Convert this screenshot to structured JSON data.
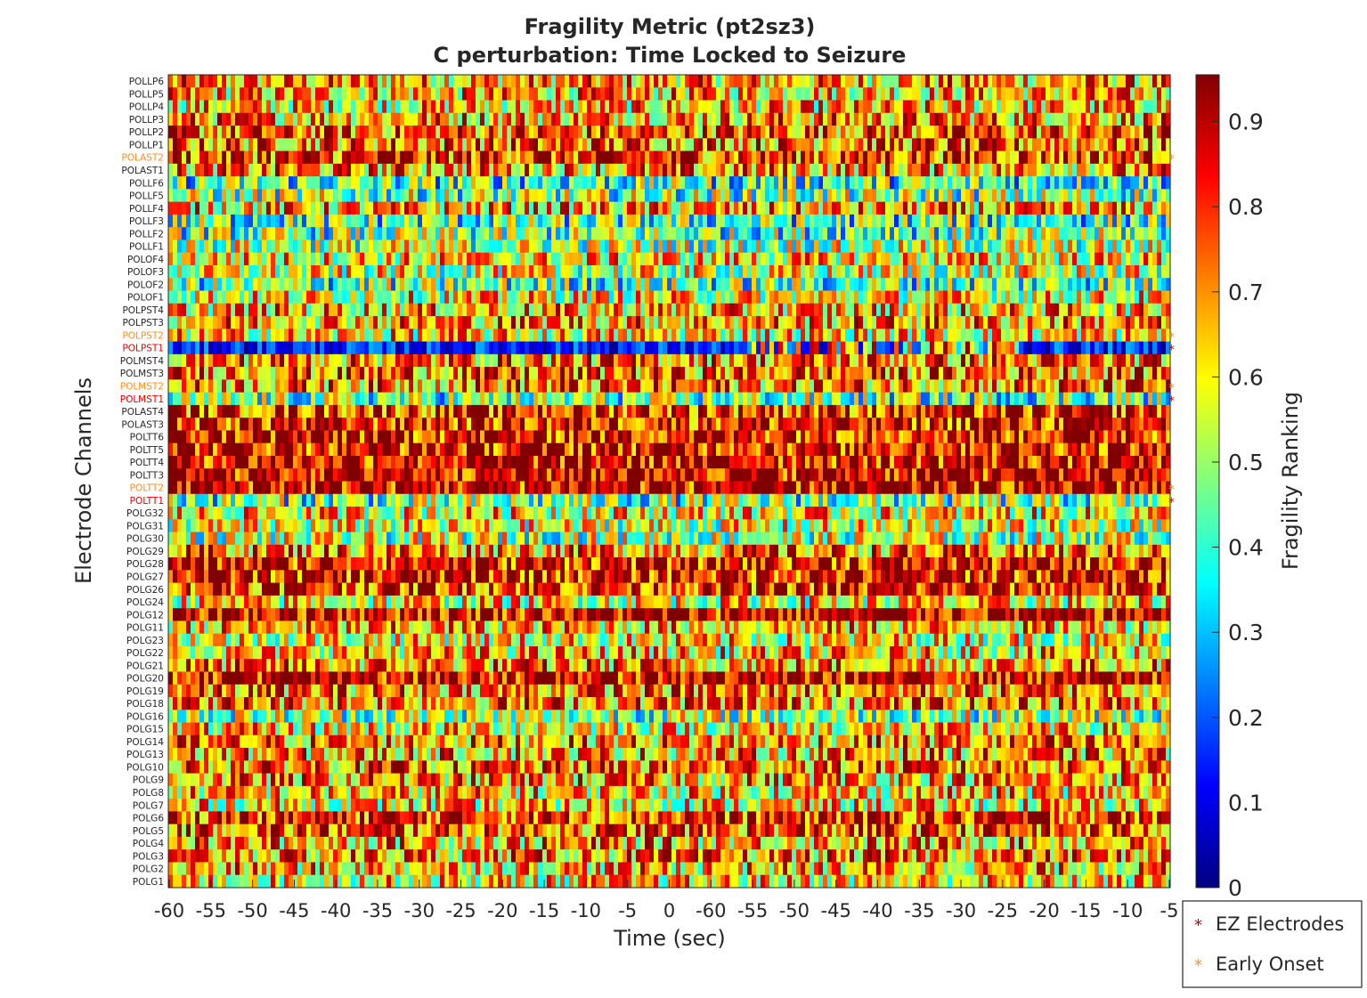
{
  "chart_data": {
    "type": "heatmap",
    "title": [
      "Fragility Metric (pt2sz3)",
      "C perturbation:  Time Locked to Seizure"
    ],
    "xlabel": "Time (sec)",
    "ylabel": "Electrode Channels",
    "x_tick_labels": [
      "-60",
      "-55",
      "-50",
      "-45",
      "-40",
      "-35",
      "-30",
      "-25",
      "-20",
      "-15",
      "-10",
      "-5",
      "0",
      "-60",
      "-55",
      "-50",
      "-45",
      "-40",
      "-35",
      "-30",
      "-25",
      "-20",
      "-15",
      "-10",
      "-5"
    ],
    "channels": [
      "POLLP6",
      "POLLP5",
      "POLLP4",
      "POLLP3",
      "POLLP2",
      "POLLP1",
      "POLAST2",
      "POLAST1",
      "POLLF6",
      "POLLF5",
      "POLLF4",
      "POLLF3",
      "POLLF2",
      "POLLF1",
      "POLOF4",
      "POLOF3",
      "POLOF2",
      "POLOF1",
      "POLPST4",
      "POLPST3",
      "POLPST2",
      "POLPST1",
      "POLMST4",
      "POLMST3",
      "POLMST2",
      "POLMST1",
      "POLAST4",
      "POLAST3",
      "POLTT6",
      "POLTT5",
      "POLTT4",
      "POLTT3",
      "POLTT2",
      "POLTT1",
      "POLG32",
      "POLG31",
      "POLG30",
      "POLG29",
      "POLG28",
      "POLG27",
      "POLG26",
      "POLG24",
      "POLG12",
      "POLG11",
      "POLG23",
      "POLG22",
      "POLG21",
      "POLG20",
      "POLG19",
      "POLG18",
      "POLG16",
      "POLG15",
      "POLG14",
      "POLG13",
      "POLG10",
      "POLG9",
      "POLG8",
      "POLG7",
      "POLG6",
      "POLG5",
      "POLG4",
      "POLG3",
      "POLG2",
      "POLG1"
    ],
    "channel_mean_fragility": [
      0.68,
      0.66,
      0.64,
      0.7,
      0.75,
      0.74,
      0.8,
      0.69,
      0.42,
      0.48,
      0.66,
      0.42,
      0.46,
      0.52,
      0.62,
      0.55,
      0.44,
      0.6,
      0.66,
      0.7,
      0.62,
      0.15,
      0.72,
      0.74,
      0.72,
      0.45,
      0.82,
      0.84,
      0.86,
      0.87,
      0.88,
      0.9,
      0.89,
      0.45,
      0.62,
      0.56,
      0.52,
      0.72,
      0.86,
      0.85,
      0.82,
      0.6,
      0.9,
      0.66,
      0.6,
      0.64,
      0.7,
      0.9,
      0.72,
      0.73,
      0.5,
      0.62,
      0.7,
      0.68,
      0.74,
      0.68,
      0.64,
      0.62,
      0.82,
      0.76,
      0.68,
      0.7,
      0.66,
      0.62
    ],
    "ez_electrodes": [
      "POLPST1",
      "POLMST1",
      "POLTT1"
    ],
    "early_onset": [
      "POLAST2",
      "POLPST2",
      "POLMST2",
      "POLTT2"
    ],
    "colorbar": {
      "label": "Fragility Ranking",
      "range": [
        0,
        0.955
      ],
      "ticks": [
        "0",
        "0.1",
        "0.2",
        "0.3",
        "0.4",
        "0.5",
        "0.6",
        "0.7",
        "0.8",
        "0.9"
      ],
      "colormap": "jet"
    },
    "legend": {
      "placement": "bottom-right",
      "items": [
        {
          "label": "EZ Electrodes",
          "marker": "*",
          "color": "#b30000"
        },
        {
          "label": "Early Onset",
          "marker": "*",
          "color": "#ff8c1a"
        }
      ]
    },
    "colors": {
      "ez": "#e00000",
      "early": "#ff8c1a",
      "axis": "#262626"
    }
  }
}
